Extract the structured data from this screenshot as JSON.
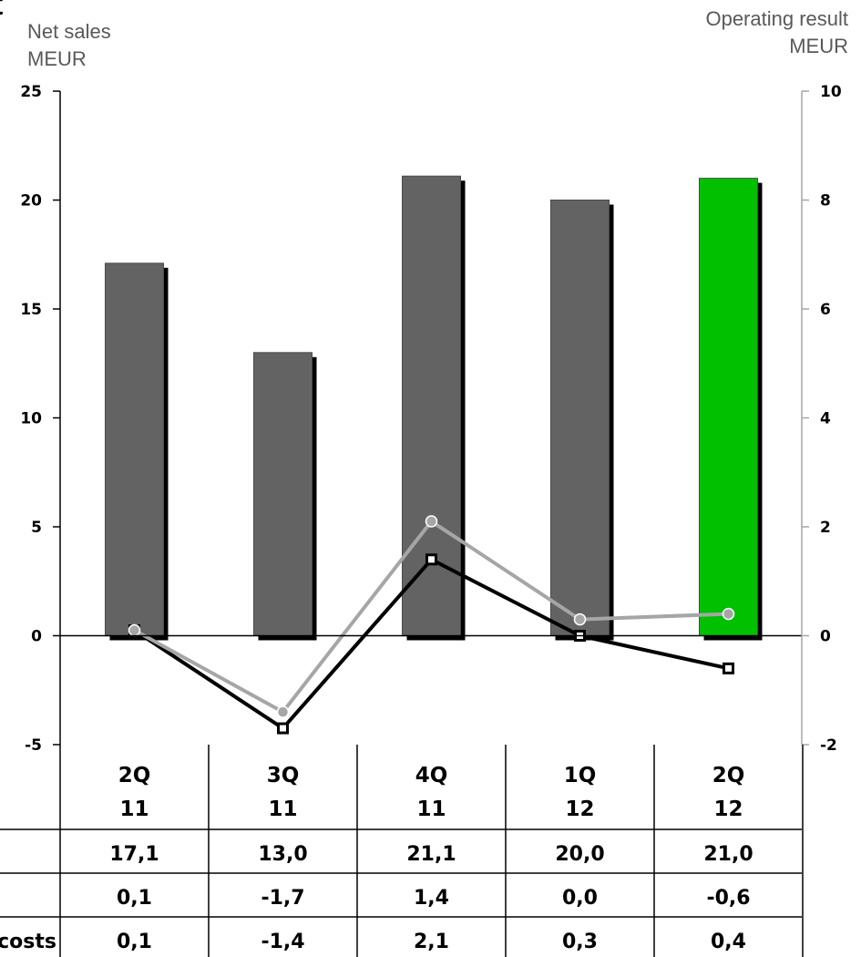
{
  "corner_glyph": "t",
  "chart_data": {
    "type": "bar",
    "left_axis_label": [
      "Net sales",
      "MEUR"
    ],
    "right_axis_label": [
      "Operating result",
      "MEUR"
    ],
    "left_ylim": [
      -5,
      25
    ],
    "left_ticks": [
      "-5",
      "0",
      "5",
      "10",
      "15",
      "20",
      "25"
    ],
    "right_ylim": [
      -2,
      10
    ],
    "right_ticks": [
      "-2",
      "0",
      "2",
      "4",
      "6",
      "8",
      "10"
    ],
    "categories": [
      [
        "2Q",
        "11"
      ],
      [
        "3Q",
        "11"
      ],
      [
        "4Q",
        "11"
      ],
      [
        "1Q",
        "12"
      ],
      [
        "2Q",
        "12"
      ]
    ],
    "bars": {
      "axis": "left",
      "values": [
        17.1,
        13.0,
        21.1,
        20.0,
        21.0
      ],
      "colors": [
        "#636363",
        "#636363",
        "#636363",
        "#636363",
        "#00c000"
      ]
    },
    "lines": [
      {
        "axis": "right",
        "color": "#000000",
        "marker": "square",
        "values": [
          0.1,
          -1.7,
          1.4,
          0.0,
          -0.6
        ]
      },
      {
        "axis": "right",
        "color": "#a6a6a6",
        "marker": "circle",
        "values": [
          0.1,
          -1.4,
          2.1,
          0.3,
          0.4
        ]
      }
    ],
    "table": {
      "rows": [
        {
          "label": "",
          "values": [
            "17,1",
            "13,0",
            "21,1",
            "20,0",
            "21,0"
          ]
        },
        {
          "label": "",
          "values": [
            "0,1",
            "-1,7",
            "1,4",
            "0,0",
            "-0,6"
          ]
        },
        {
          "label": "costs",
          "values": [
            "0,1",
            "-1,4",
            "2,1",
            "0,3",
            "0,4"
          ]
        }
      ]
    }
  }
}
